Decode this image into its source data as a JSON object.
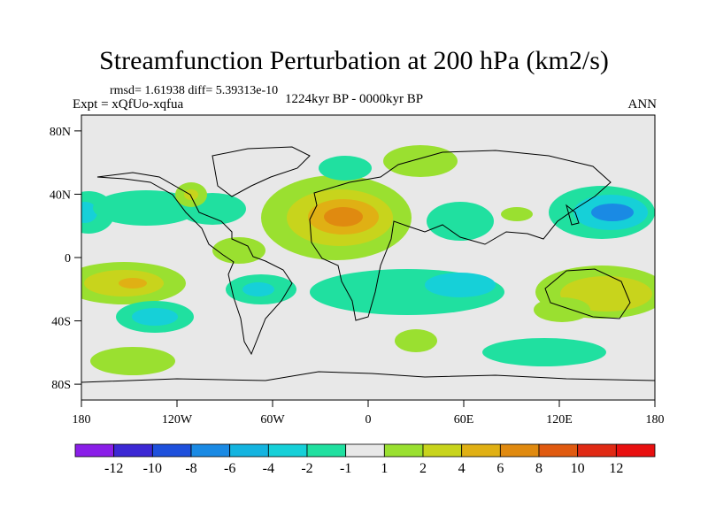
{
  "title": "Streamfunction Perturbation at 200 hPa (km2/s)",
  "stats": "rmsd= 1.61938 diff= 5.39313e-10",
  "experiment": "Expt = xQfUo-xqfua",
  "period": "1224kyr BP - 0000kyr BP",
  "season": "ANN",
  "map": {
    "lat_ticks": [
      "80N",
      "40N",
      "0",
      "40S",
      "80S"
    ],
    "lon_ticks": [
      "180",
      "120W",
      "60W",
      "0",
      "60E",
      "120E",
      "180"
    ],
    "lon_range": [
      -180,
      180
    ],
    "lat_range": [
      -90,
      90
    ]
  },
  "colorbar": {
    "labels": [
      "-12",
      "-10",
      "-8",
      "-6",
      "-4",
      "-2",
      "-1",
      "1",
      "2",
      "4",
      "6",
      "8",
      "10",
      "12"
    ],
    "colors": [
      "#8a1ee8",
      "#3c28d4",
      "#1e50dc",
      "#1a8ae4",
      "#14b4e0",
      "#16d0d8",
      "#20e0a0",
      "#e8e8e8",
      "#9ae030",
      "#c8d41c",
      "#e0b014",
      "#e08a10",
      "#e05a10",
      "#e02a14",
      "#e81010"
    ]
  },
  "chart_data": {
    "type": "heatmap",
    "title": "Streamfunction Perturbation at 200 hPa (km2/s)",
    "units": "km2/s",
    "field": "200 hPa streamfunction perturbation, 1224kyr BP minus 0000kyr BP, annual mean",
    "regions": [
      {
        "name": "north-africa-max",
        "lon": -15,
        "lat": 28,
        "value": 8
      },
      {
        "name": "n-pacific-east-min",
        "lon": -175,
        "lat": 28,
        "value": -4
      },
      {
        "name": "w-pacific-japan-min",
        "lon": 152,
        "lat": 30,
        "value": -6
      },
      {
        "name": "s-pacific-max",
        "lon": -145,
        "lat": -15,
        "value": 5
      },
      {
        "name": "s-pacific-min",
        "lon": -140,
        "lat": -40,
        "value": -4
      },
      {
        "name": "s-pacific-subpolar-max",
        "lon": -130,
        "lat": -70,
        "value": 2
      },
      {
        "name": "australia-max",
        "lon": 140,
        "lat": -20,
        "value": 5
      },
      {
        "name": "s-indian-ocean-min",
        "lon": 60,
        "lat": -15,
        "value": -2
      },
      {
        "name": "s-america-min",
        "lon": -55,
        "lat": -20,
        "value": -2
      },
      {
        "name": "n-atlantic-min",
        "lon": -5,
        "lat": 60,
        "value": -2
      },
      {
        "name": "n-europe-max",
        "lon": 35,
        "lat": 63,
        "value": 2
      }
    ]
  }
}
